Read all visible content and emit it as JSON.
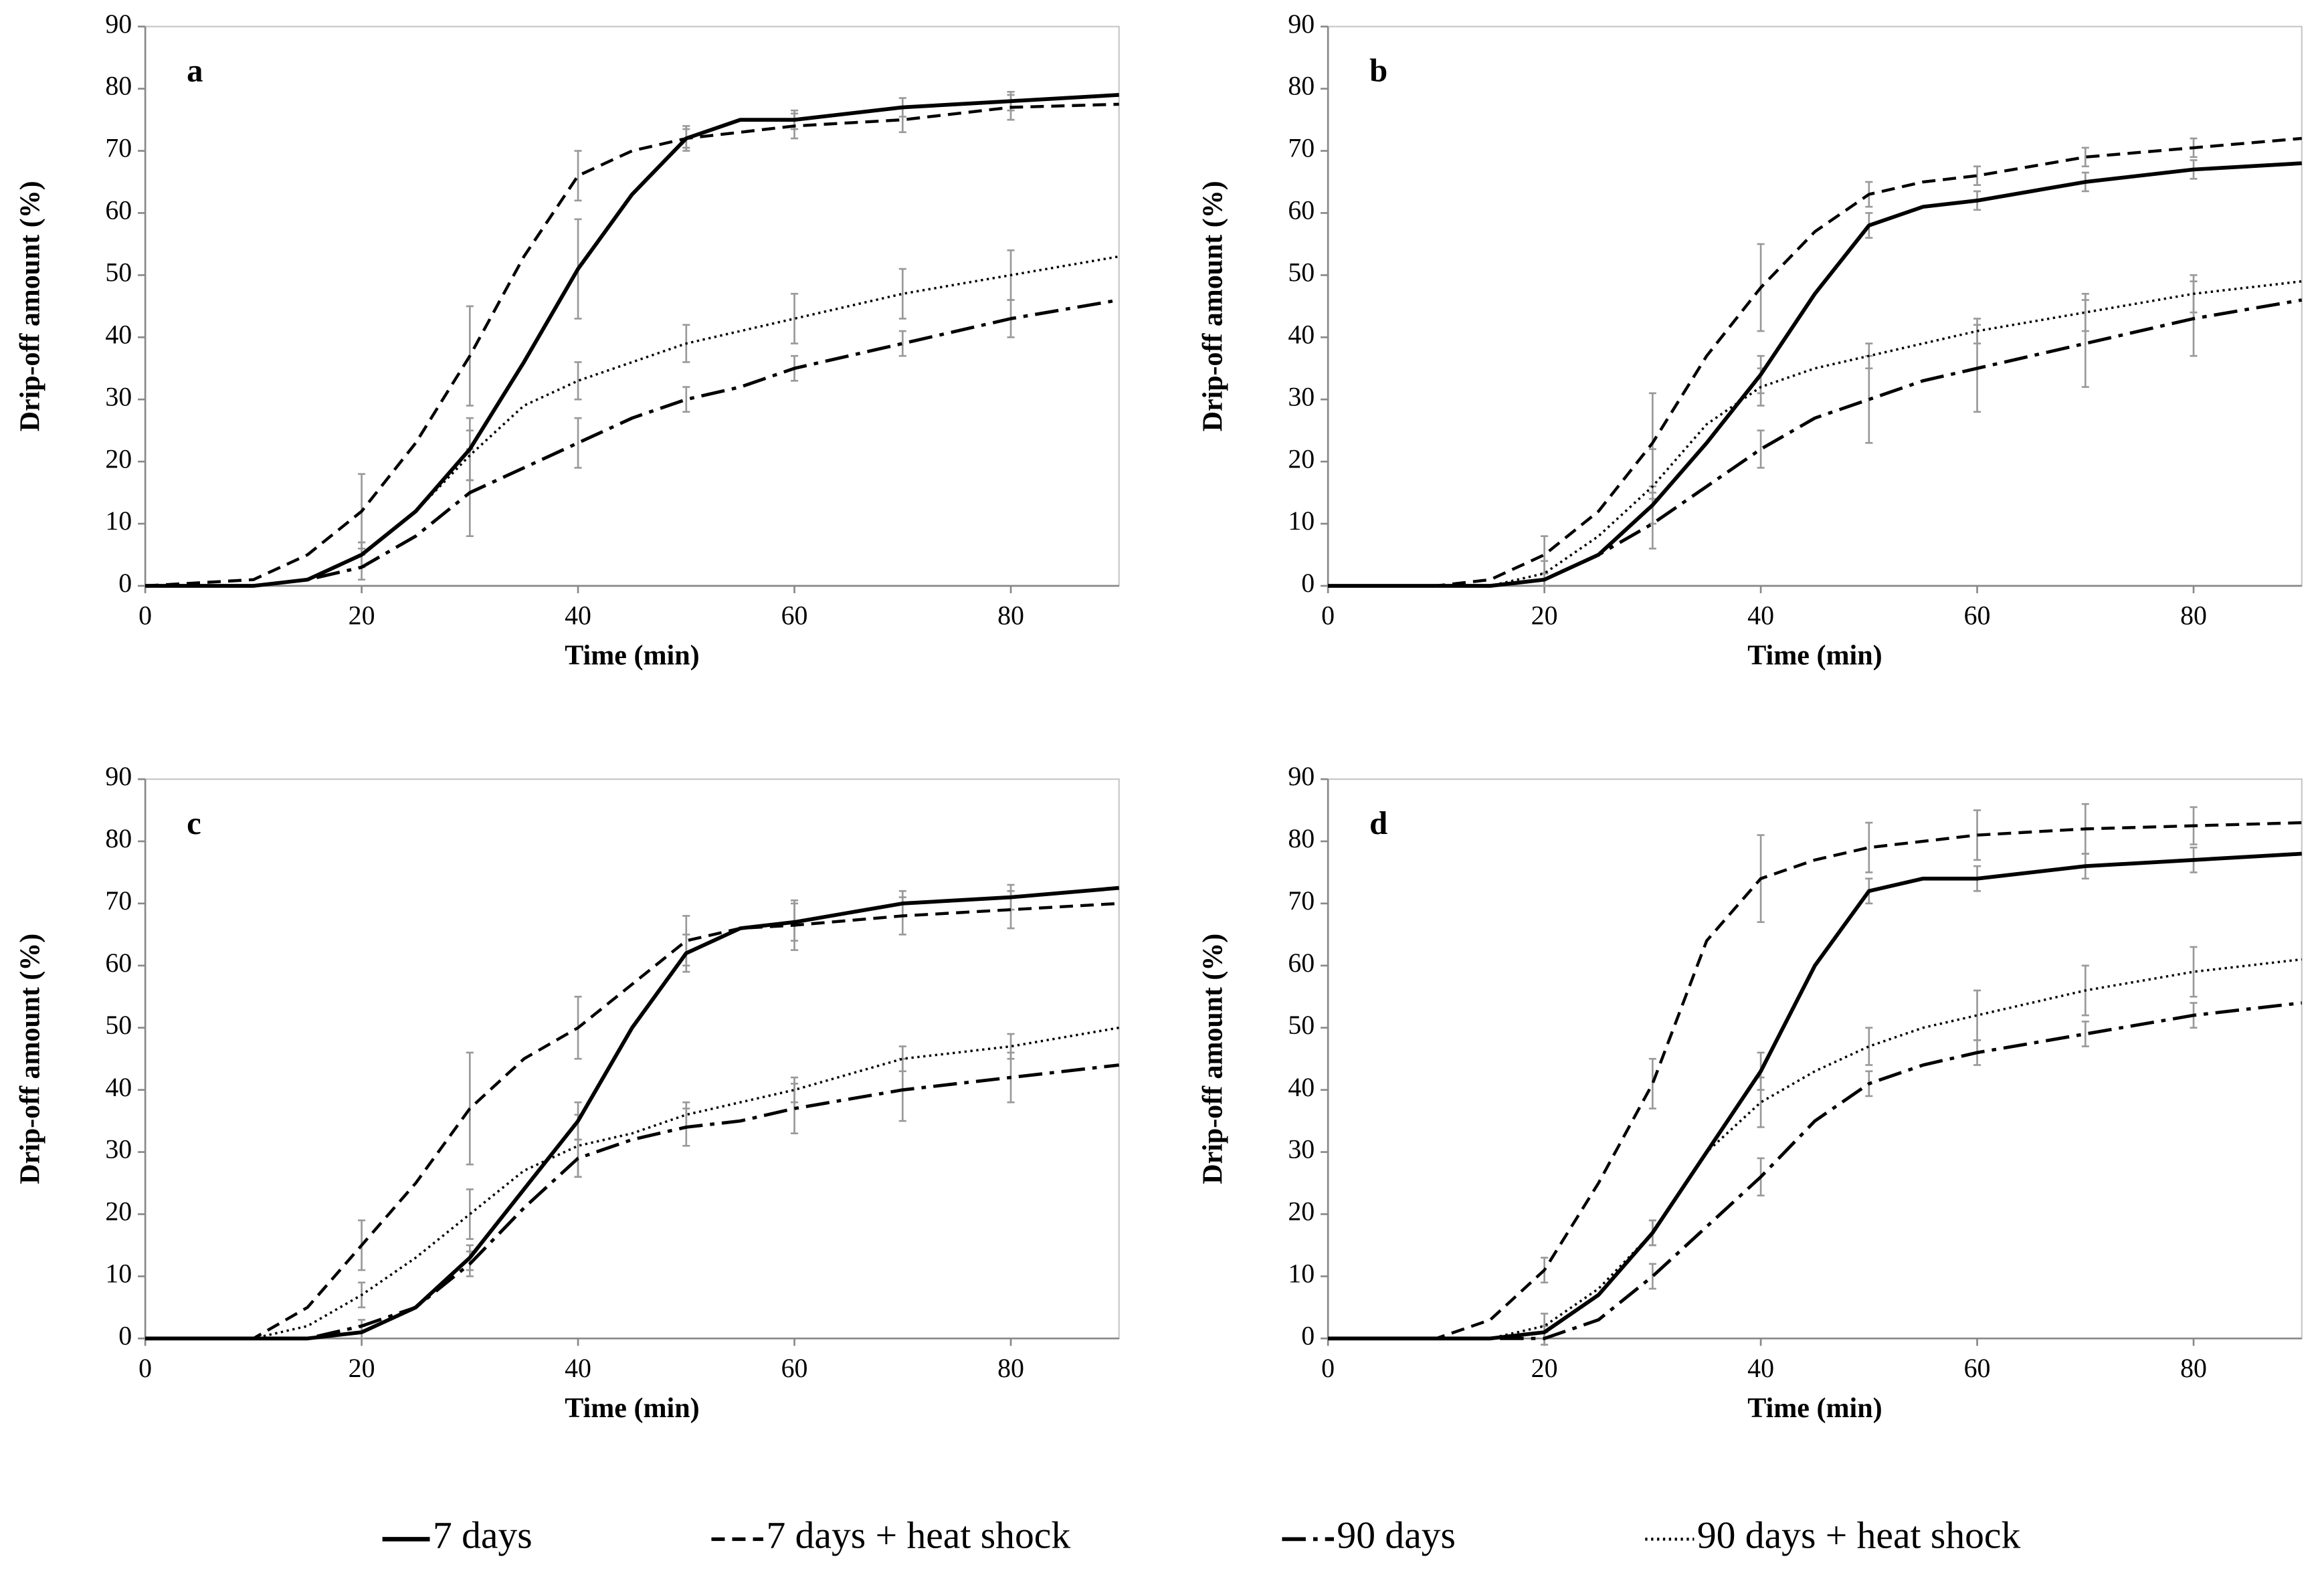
{
  "legend": [
    {
      "name": "7 days",
      "style": "solid",
      "color": "#000000"
    },
    {
      "name": "7 days + heat shock",
      "style": "dashed",
      "color": "#000000"
    },
    {
      "name": "90 days",
      "style": "dashdot",
      "color": "#000000"
    },
    {
      "name": "90 days + heat shock",
      "style": "dotted",
      "color": "#000000"
    }
  ],
  "chart_data": [
    {
      "type": "line",
      "title": "a",
      "xlabel": "Time (min)",
      "ylabel": "Drip-off amount (%)",
      "xlim": [
        0,
        90
      ],
      "xticks": [
        0,
        20,
        40,
        60,
        80
      ],
      "ylim": [
        0,
        90
      ],
      "yticks": [
        0,
        10,
        20,
        30,
        40,
        50,
        60,
        70,
        80,
        90
      ],
      "x": [
        0,
        10,
        15,
        20,
        25,
        30,
        35,
        40,
        45,
        50,
        55,
        60,
        70,
        80,
        90
      ],
      "series": [
        {
          "values": [
            0,
            0,
            1,
            5,
            12,
            22,
            36,
            51,
            63,
            72,
            75,
            75,
            77,
            78,
            79
          ],
          "errors": [
            null,
            null,
            null,
            2,
            null,
            5,
            null,
            8,
            null,
            1.5,
            null,
            1.5,
            1.5,
            1.5,
            null
          ]
        },
        {
          "values": [
            0,
            1,
            5,
            12,
            23,
            37,
            53,
            66,
            70,
            72,
            73,
            74,
            75,
            77,
            77.5
          ],
          "errors": [
            null,
            null,
            null,
            6,
            null,
            8,
            null,
            4,
            null,
            2,
            null,
            2,
            2,
            2,
            null
          ]
        },
        {
          "values": [
            0,
            0,
            1,
            3,
            8,
            15,
            19,
            23,
            27,
            30,
            32,
            35,
            39,
            43,
            46
          ],
          "errors": [
            null,
            null,
            null,
            2,
            null,
            7,
            null,
            4,
            null,
            2,
            null,
            2,
            2,
            3,
            null
          ]
        },
        {
          "values": [
            0,
            0,
            1,
            5,
            12,
            21,
            29,
            33,
            36,
            39,
            41,
            43,
            47,
            50,
            53
          ],
          "errors": [
            null,
            null,
            null,
            2,
            null,
            4,
            null,
            3,
            null,
            3,
            null,
            4,
            4,
            4,
            null
          ]
        }
      ]
    },
    {
      "type": "line",
      "title": "b",
      "xlabel": "Time (min)",
      "ylabel": "Drip-off amount (%)",
      "xlim": [
        0,
        90
      ],
      "xticks": [
        0,
        20,
        40,
        60,
        80
      ],
      "ylim": [
        0,
        90
      ],
      "yticks": [
        0,
        10,
        20,
        30,
        40,
        50,
        60,
        70,
        80,
        90
      ],
      "x": [
        0,
        10,
        15,
        20,
        25,
        30,
        35,
        40,
        45,
        50,
        55,
        60,
        70,
        80,
        90
      ],
      "series": [
        {
          "values": [
            0,
            0,
            0,
            1,
            5,
            13,
            23,
            34,
            47,
            58,
            61,
            62,
            65,
            67,
            68
          ],
          "errors": [
            null,
            null,
            null,
            1,
            null,
            3,
            null,
            3,
            null,
            2,
            null,
            1.5,
            1.5,
            1.5,
            null
          ]
        },
        {
          "values": [
            0,
            0,
            1,
            5,
            12,
            23,
            37,
            48,
            57,
            63,
            65,
            66,
            69,
            70.5,
            72
          ],
          "errors": [
            null,
            null,
            null,
            3,
            null,
            8,
            null,
            7,
            null,
            2,
            null,
            1.5,
            1.5,
            1.5,
            null
          ]
        },
        {
          "values": [
            0,
            0,
            0,
            1,
            5,
            10,
            16,
            22,
            27,
            30,
            33,
            35,
            39,
            43,
            46
          ],
          "errors": [
            null,
            null,
            null,
            1,
            null,
            4,
            null,
            3,
            null,
            7,
            null,
            7,
            7,
            6,
            null
          ]
        },
        {
          "values": [
            0,
            0,
            0,
            2,
            8,
            16,
            26,
            32,
            35,
            37,
            39,
            41,
            44,
            47,
            49
          ],
          "errors": [
            null,
            null,
            null,
            2,
            null,
            6,
            null,
            3,
            null,
            2,
            null,
            2,
            3,
            3,
            null
          ]
        }
      ]
    },
    {
      "type": "line",
      "title": "c",
      "xlabel": "Time (min)",
      "ylabel": "Drip-off amount (%)",
      "xlim": [
        0,
        90
      ],
      "xticks": [
        0,
        20,
        40,
        60,
        80
      ],
      "ylim": [
        0,
        90
      ],
      "yticks": [
        0,
        10,
        20,
        30,
        40,
        50,
        60,
        70,
        80,
        90
      ],
      "x": [
        0,
        10,
        15,
        20,
        25,
        30,
        35,
        40,
        45,
        50,
        55,
        60,
        70,
        80,
        90
      ],
      "series": [
        {
          "values": [
            0,
            0,
            0,
            1,
            5,
            13,
            24,
            35,
            50,
            62,
            66,
            67,
            70,
            71,
            72.5
          ],
          "errors": [
            null,
            null,
            null,
            1,
            null,
            2,
            null,
            3,
            null,
            3,
            null,
            3,
            2,
            2,
            null
          ]
        },
        {
          "values": [
            0,
            0,
            5,
            15,
            25,
            37,
            45,
            50,
            57,
            64,
            66,
            66.5,
            68,
            69,
            70
          ],
          "errors": [
            null,
            null,
            null,
            4,
            null,
            9,
            null,
            5,
            null,
            4,
            null,
            4,
            3,
            3,
            null
          ]
        },
        {
          "values": [
            0,
            0,
            0,
            2,
            5,
            12,
            21,
            29,
            32,
            34,
            35,
            37,
            40,
            42,
            44
          ],
          "errors": [
            null,
            null,
            null,
            1,
            null,
            2,
            null,
            3,
            null,
            3,
            null,
            4,
            5,
            4,
            null
          ]
        },
        {
          "values": [
            0,
            0,
            2,
            7,
            13,
            20,
            27,
            31,
            33,
            36,
            38,
            40,
            45,
            47,
            50
          ],
          "errors": [
            null,
            null,
            null,
            2,
            null,
            4,
            null,
            5,
            null,
            2,
            null,
            2,
            2,
            2,
            null
          ]
        }
      ]
    },
    {
      "type": "line",
      "title": "d",
      "xlabel": "Time (min)",
      "ylabel": "Drip-off amount (%)",
      "xlim": [
        0,
        90
      ],
      "xticks": [
        0,
        20,
        40,
        60,
        80
      ],
      "ylim": [
        0,
        90
      ],
      "yticks": [
        0,
        10,
        20,
        30,
        40,
        50,
        60,
        70,
        80,
        90
      ],
      "x": [
        0,
        10,
        15,
        20,
        25,
        30,
        35,
        40,
        45,
        50,
        55,
        60,
        70,
        80,
        90
      ],
      "series": [
        {
          "values": [
            0,
            0,
            0,
            1,
            7,
            17,
            30,
            43,
            60,
            72,
            74,
            74,
            76,
            77,
            78
          ],
          "errors": [
            null,
            null,
            null,
            1,
            null,
            2,
            null,
            3,
            null,
            2,
            null,
            2,
            2,
            2,
            null
          ]
        },
        {
          "values": [
            0,
            0,
            3,
            11,
            25,
            41,
            64,
            74,
            77,
            79,
            80,
            81,
            82,
            82.5,
            83
          ],
          "errors": [
            null,
            null,
            null,
            2,
            null,
            4,
            null,
            7,
            null,
            4,
            null,
            4,
            4,
            3,
            null
          ]
        },
        {
          "values": [
            0,
            0,
            0,
            0,
            3,
            10,
            18,
            26,
            35,
            41,
            44,
            46,
            49,
            52,
            54
          ],
          "errors": [
            null,
            null,
            null,
            1,
            null,
            2,
            null,
            3,
            null,
            2,
            null,
            2,
            2,
            2,
            null
          ]
        },
        {
          "values": [
            0,
            0,
            0,
            2,
            8,
            17,
            30,
            38,
            43,
            47,
            50,
            52,
            56,
            59,
            61
          ],
          "errors": [
            null,
            null,
            null,
            2,
            null,
            2,
            null,
            4,
            null,
            3,
            null,
            4,
            4,
            4,
            null
          ]
        }
      ]
    }
  ]
}
